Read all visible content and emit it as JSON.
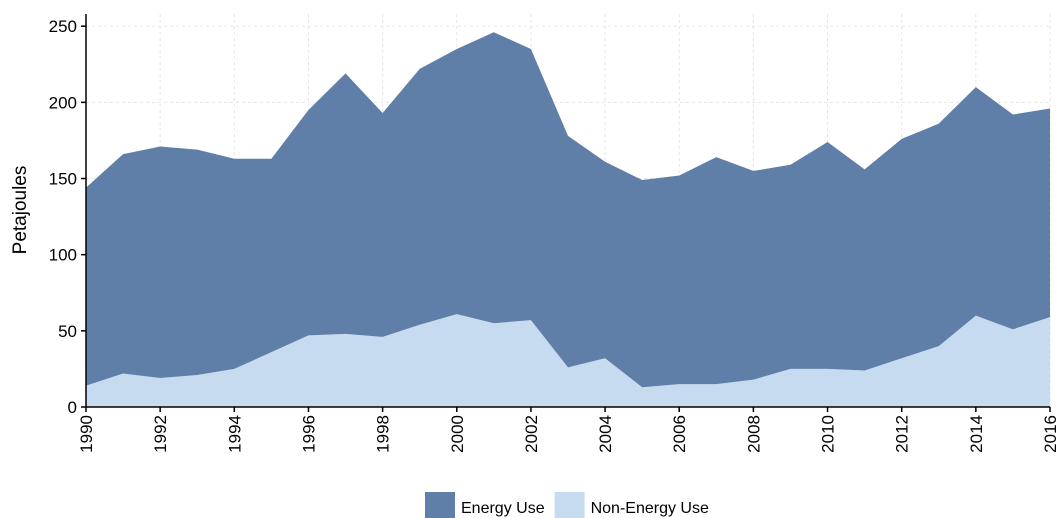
{
  "chart_data": {
    "type": "area",
    "stacked": true,
    "y_label": "Petajoules",
    "x": [
      1990,
      1991,
      1992,
      1993,
      1994,
      1995,
      1996,
      1997,
      1998,
      1999,
      2000,
      2001,
      2002,
      2003,
      2004,
      2005,
      2006,
      2007,
      2008,
      2009,
      2010,
      2011,
      2012,
      2013,
      2014,
      2015,
      2016
    ],
    "series": [
      {
        "name": "Energy Use",
        "color": "#5f7fa8",
        "values": [
          130,
          144,
          152,
          148,
          138,
          127,
          148,
          171,
          147,
          168,
          174,
          191,
          178,
          152,
          129,
          136,
          137,
          149,
          137,
          134,
          149,
          132,
          144,
          146,
          150,
          141,
          137
        ]
      },
      {
        "name": "Non-Energy Use",
        "color": "#c6dbf0",
        "values": [
          14,
          22,
          19,
          21,
          25,
          36,
          47,
          48,
          46,
          54,
          61,
          55,
          57,
          26,
          32,
          13,
          15,
          15,
          18,
          25,
          25,
          24,
          32,
          40,
          60,
          51,
          59
        ]
      }
    ],
    "xlim": [
      1990,
      2016
    ],
    "xticks": [
      1990,
      1992,
      1994,
      1996,
      1998,
      2000,
      2002,
      2004,
      2006,
      2008,
      2010,
      2012,
      2014,
      2016
    ],
    "ylim": [
      0,
      258
    ],
    "yticks": [
      0,
      50,
      100,
      150,
      200,
      250
    ],
    "grid": true,
    "legend": "bottom"
  }
}
